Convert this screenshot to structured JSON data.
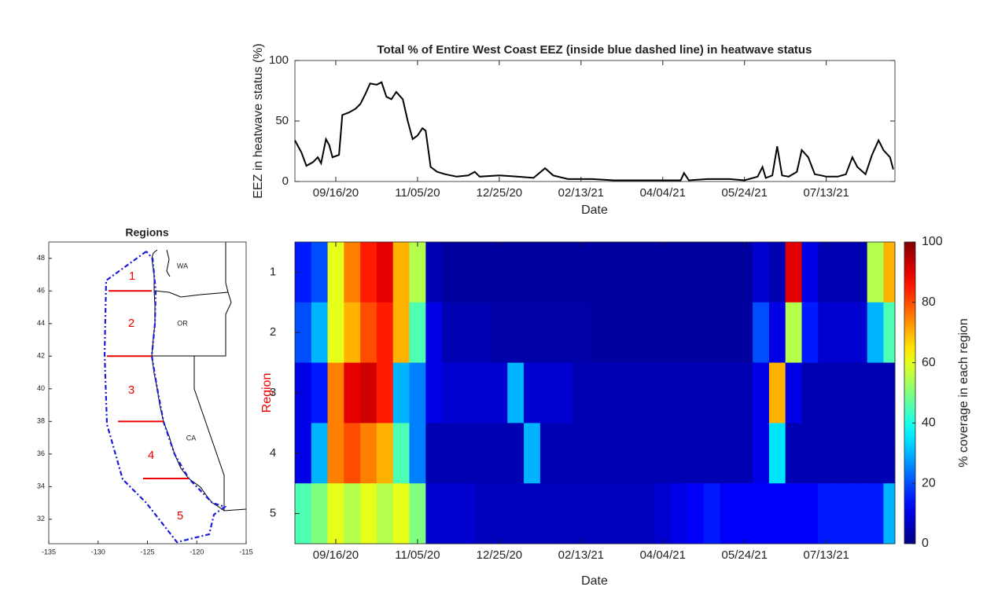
{
  "chart_data": [
    {
      "type": "line",
      "title": "Total % of Entire West Coast EEZ (inside blue dashed line) in heatwave status",
      "x_label": "Date",
      "y_label": "EEZ in heatwave status (%)",
      "xlim": [
        "08/22/20",
        "08/24/21"
      ],
      "xticks": [
        "09/16/20",
        "11/05/20",
        "12/25/20",
        "02/13/21",
        "04/04/21",
        "05/24/21",
        "07/13/21"
      ],
      "ylim": [
        0,
        100
      ],
      "yticks": [
        0,
        50,
        100
      ],
      "color": "#000000",
      "x": [
        "08/22/20",
        "08/26/20",
        "08/29/20",
        "09/02/20",
        "09/05/20",
        "09/07/20",
        "09/10/20",
        "09/12/20",
        "09/14/20",
        "09/18/20",
        "09/20/20",
        "09/24/20",
        "09/28/20",
        "10/01/20",
        "10/04/20",
        "10/07/20",
        "10/11/20",
        "10/14/20",
        "10/17/20",
        "10/20/20",
        "10/23/20",
        "10/27/20",
        "10/30/20",
        "11/02/20",
        "11/05/20",
        "11/08/20",
        "11/10/20",
        "11/13/20",
        "11/17/20",
        "11/22/20",
        "11/29/20",
        "12/06/20",
        "12/10/20",
        "12/13/20",
        "12/25/20",
        "01/05/21",
        "01/15/21",
        "01/22/21",
        "01/27/21",
        "02/05/21",
        "02/20/21",
        "03/05/21",
        "03/20/21",
        "04/04/21",
        "04/15/21",
        "04/17/21",
        "04/20/21",
        "05/01/21",
        "05/15/21",
        "05/24/21",
        "06/01/21",
        "06/04/21",
        "06/06/21",
        "06/10/21",
        "06/13/21",
        "06/16/21",
        "06/20/21",
        "06/25/21",
        "06/28/21",
        "07/02/21",
        "07/06/21",
        "07/10/21",
        "07/13/21",
        "07/20/21",
        "07/25/21",
        "07/29/21",
        "08/01/21",
        "08/06/21",
        "08/10/21",
        "08/14/21",
        "08/17/21",
        "08/21/21",
        "08/23/21"
      ],
      "values": [
        34,
        24,
        13,
        16,
        20,
        15,
        35,
        30,
        20,
        22,
        55,
        57,
        60,
        64,
        72,
        81,
        80,
        82,
        70,
        68,
        74,
        68,
        50,
        35,
        38,
        44,
        42,
        12,
        8,
        6,
        4,
        5,
        8,
        4,
        5,
        4,
        3,
        11,
        5,
        2,
        2,
        1,
        1,
        1,
        1,
        7,
        1,
        2,
        2,
        1,
        4,
        12,
        3,
        5,
        29,
        5,
        4,
        8,
        26,
        20,
        6,
        5,
        4,
        4,
        6,
        20,
        12,
        6,
        22,
        34,
        26,
        20,
        10
      ]
    },
    {
      "type": "heatmap",
      "x_label": "Date",
      "y_label": "Region",
      "colorbar_label": "% coverage in each region",
      "colormap": "jet",
      "xlim": [
        "08/22/20",
        "08/24/21"
      ],
      "xticks": [
        "09/16/20",
        "11/05/20",
        "12/25/20",
        "02/13/21",
        "04/04/21",
        "05/24/21",
        "07/13/21"
      ],
      "clim": [
        0,
        100
      ],
      "cticks": [
        0,
        20,
        40,
        60,
        80,
        100
      ],
      "y_categories": [
        "1",
        "2",
        "3",
        "4",
        "5"
      ],
      "x": [
        "08/22/20",
        "09/01/20",
        "09/11/20",
        "09/21/20",
        "10/01/20",
        "10/11/20",
        "10/21/20",
        "10/31/20",
        "11/10/20",
        "11/20/20",
        "11/30/20",
        "12/10/20",
        "12/20/20",
        "12/30/20",
        "01/09/21",
        "01/19/21",
        "01/29/21",
        "02/08/21",
        "02/18/21",
        "02/28/21",
        "03/10/21",
        "03/20/21",
        "03/30/21",
        "04/09/21",
        "04/19/21",
        "04/29/21",
        "05/09/21",
        "05/19/21",
        "05/29/21",
        "06/08/21",
        "06/18/21",
        "06/28/21",
        "07/08/21",
        "07/18/21",
        "07/28/21",
        "08/07/21",
        "08/17/21"
      ],
      "z": [
        [
          15,
          20,
          60,
          75,
          85,
          90,
          70,
          55,
          5,
          3,
          3,
          3,
          3,
          3,
          3,
          3,
          3,
          3,
          3,
          3,
          3,
          3,
          3,
          3,
          3,
          3,
          3,
          3,
          8,
          5,
          90,
          10,
          5,
          5,
          5,
          55,
          70
        ],
        [
          20,
          30,
          60,
          70,
          80,
          85,
          70,
          45,
          10,
          5,
          5,
          5,
          4,
          4,
          4,
          4,
          4,
          4,
          3,
          3,
          3,
          3,
          3,
          3,
          3,
          3,
          3,
          3,
          20,
          10,
          55,
          15,
          8,
          8,
          8,
          30,
          45
        ],
        [
          10,
          15,
          75,
          90,
          92,
          85,
          30,
          25,
          10,
          8,
          8,
          8,
          8,
          30,
          8,
          8,
          8,
          5,
          5,
          5,
          5,
          5,
          5,
          5,
          5,
          5,
          5,
          5,
          10,
          70,
          10,
          5,
          5,
          5,
          5,
          5,
          5
        ],
        [
          10,
          30,
          75,
          80,
          75,
          70,
          45,
          25,
          5,
          5,
          5,
          5,
          5,
          5,
          30,
          5,
          5,
          5,
          5,
          5,
          5,
          5,
          5,
          5,
          5,
          5,
          5,
          5,
          10,
          35,
          5,
          5,
          5,
          5,
          5,
          5,
          5
        ],
        [
          45,
          50,
          60,
          55,
          60,
          55,
          60,
          50,
          8,
          8,
          8,
          6,
          6,
          6,
          6,
          6,
          6,
          6,
          6,
          6,
          6,
          6,
          8,
          10,
          12,
          15,
          12,
          12,
          12,
          12,
          12,
          12,
          15,
          15,
          15,
          15,
          30
        ]
      ]
    },
    {
      "type": "map",
      "title": "Regions",
      "xlim": [
        -135,
        -115
      ],
      "xticks": [
        -135,
        -130,
        -125,
        -120,
        -115
      ],
      "ylim": [
        30.5,
        49
      ],
      "yticks": [
        32,
        34,
        36,
        38,
        40,
        42,
        44,
        46,
        48
      ],
      "region_labels": [
        "1",
        "2",
        "3",
        "4",
        "5"
      ],
      "state_labels": [
        "WA",
        "OR",
        "CA"
      ],
      "boundaries_lat": [
        46,
        42,
        38,
        34.5
      ]
    }
  ]
}
